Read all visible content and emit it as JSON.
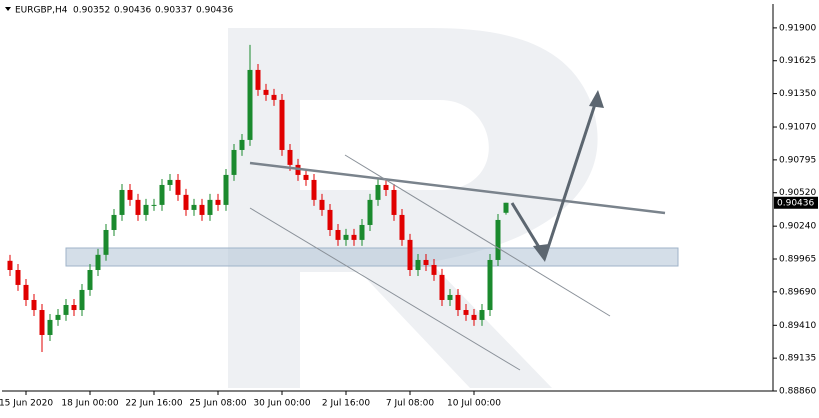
{
  "chart_data": {
    "type": "candlestick",
    "symbol": "EURGBP,H4",
    "categories": [
      null,
      null,
      "15 Jun 2020",
      null,
      null,
      null,
      null,
      null,
      null,
      null,
      "18 Jun 00:00",
      null,
      null,
      null,
      null,
      null,
      null,
      null,
      "22 Jun 16:00",
      null,
      null,
      null,
      null,
      null,
      null,
      null,
      "25 Jun 08:00",
      null,
      null,
      null,
      null,
      null,
      null,
      null,
      "30 Jun 00:00",
      null,
      null,
      null,
      null,
      null,
      null,
      null,
      "2 Jul 16:00",
      null,
      null,
      null,
      null,
      null,
      null,
      null,
      "7 Jul 08:00",
      null,
      null,
      null,
      null,
      null,
      null,
      null,
      "10 Jul 00:00",
      null,
      null,
      null,
      null
    ],
    "open": [
      0.8995,
      0.89873,
      0.89748,
      0.89622,
      0.89538,
      0.89329,
      0.89455,
      0.89497,
      0.8958,
      0.89538,
      0.89706,
      0.89873,
      0.9,
      0.90208,
      0.90334,
      0.90543,
      0.9046,
      0.90334,
      0.90418,
      0.90418,
      0.90585,
      0.90627,
      0.90502,
      0.90376,
      0.90418,
      0.90334,
      0.9046,
      0.90418,
      0.90669,
      0.90878,
      0.90962,
      0.91548,
      0.91381,
      0.91339,
      0.91297,
      0.90878,
      0.90753,
      0.90669,
      0.90627,
      0.9046,
      0.90376,
      0.90208,
      0.90125,
      0.90167,
      0.90125,
      0.9025,
      0.9046,
      0.90585,
      0.90543,
      0.90334,
      0.90125,
      0.89873,
      0.89957,
      0.89915,
      0.89832,
      0.89622,
      0.89664,
      0.89538,
      0.89497,
      0.89455,
      0.89538,
      0.89957,
      0.90352
    ],
    "high": [
      0.9,
      0.89923,
      0.89798,
      0.89672,
      0.89588,
      0.89505,
      0.89547,
      0.8963,
      0.8963,
      0.89756,
      0.89923,
      0.9005,
      0.90258,
      0.90384,
      0.90593,
      0.90593,
      0.9051,
      0.90468,
      0.90468,
      0.90635,
      0.90677,
      0.90677,
      0.90552,
      0.90468,
      0.90468,
      0.9051,
      0.9051,
      0.90719,
      0.90928,
      0.91012,
      0.91758,
      0.91598,
      0.91431,
      0.91389,
      0.91347,
      0.90928,
      0.90803,
      0.90719,
      0.90677,
      0.9051,
      0.90426,
      0.90258,
      0.90217,
      0.90217,
      0.903,
      0.9051,
      0.90635,
      0.90635,
      0.90593,
      0.90384,
      0.90175,
      0.90007,
      0.90007,
      0.89965,
      0.89882,
      0.89714,
      0.89714,
      0.89588,
      0.89547,
      0.89588,
      0.90007,
      0.90342,
      0.90436
    ],
    "low": [
      0.89823,
      0.89698,
      0.89572,
      0.89488,
      0.89187,
      0.89279,
      0.89405,
      0.89447,
      0.89488,
      0.89488,
      0.89656,
      0.89823,
      0.8995,
      0.90158,
      0.90284,
      0.9041,
      0.90284,
      0.90284,
      0.90368,
      0.90368,
      0.90535,
      0.90452,
      0.90326,
      0.90326,
      0.90284,
      0.90284,
      0.90368,
      0.90368,
      0.90619,
      0.90828,
      0.90912,
      0.91331,
      0.91289,
      0.91247,
      0.90828,
      0.90703,
      0.90619,
      0.90577,
      0.9041,
      0.90326,
      0.90158,
      0.90075,
      0.90075,
      0.90075,
      0.90075,
      0.902,
      0.9041,
      0.90493,
      0.90284,
      0.90075,
      0.89823,
      0.89823,
      0.89865,
      0.89782,
      0.89572,
      0.89572,
      0.89488,
      0.89447,
      0.89405,
      0.89405,
      0.89488,
      0.89907,
      0.90337
    ],
    "close": [
      0.89873,
      0.89748,
      0.89622,
      0.89538,
      0.89329,
      0.89455,
      0.89497,
      0.8958,
      0.89538,
      0.89706,
      0.89873,
      0.9,
      0.90208,
      0.90334,
      0.90543,
      0.9046,
      0.90334,
      0.90418,
      0.90418,
      0.90585,
      0.90627,
      0.90502,
      0.90376,
      0.90418,
      0.90334,
      0.9046,
      0.90418,
      0.90669,
      0.90878,
      0.90962,
      0.91548,
      0.91381,
      0.91339,
      0.91297,
      0.90878,
      0.90753,
      0.90669,
      0.90627,
      0.9046,
      0.90376,
      0.90208,
      0.90125,
      0.90167,
      0.90125,
      0.9025,
      0.9046,
      0.90585,
      0.90543,
      0.90334,
      0.90125,
      0.89873,
      0.89957,
      0.89915,
      0.89832,
      0.89622,
      0.89664,
      0.89538,
      0.89497,
      0.89455,
      0.89538,
      0.89957,
      0.90292,
      0.90436
    ],
    "up_color": "#1b8a2e",
    "down_color": "#e00000",
    "ylim": [
      0.8886,
      0.921
    ],
    "yticks": [
      {
        "value": 0.919,
        "label": "0.91900"
      },
      0.91625,
      {
        "value": 0.9135,
        "label": "0.91350"
      },
      {
        "value": 0.9107,
        "label": "0.91070"
      },
      0.90795,
      {
        "value": 0.9052,
        "label": "0.90520"
      },
      {
        "value": 0.9024,
        "label": "0.90240"
      },
      0.89965,
      {
        "value": 0.8969,
        "label": "0.89690"
      },
      {
        "value": 0.8941,
        "label": "0.89410"
      },
      0.89135,
      {
        "value": 0.8886,
        "label": "0.88860"
      }
    ]
  }
}
